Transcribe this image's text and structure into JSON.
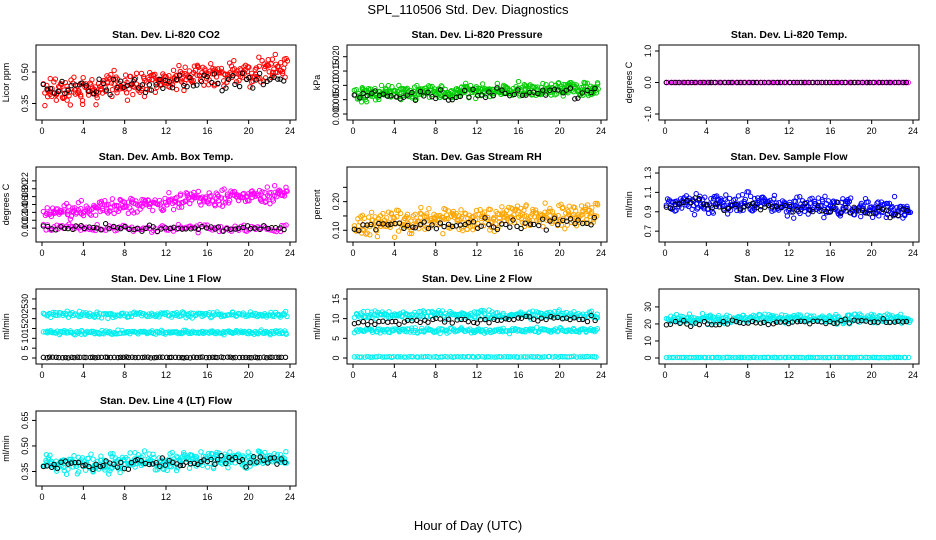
{
  "title": "SPL_110506  Std. Dev. Diagnostics",
  "xlabel": "Hour of Day (UTC)",
  "chart_data": [
    {
      "type": "scatter",
      "title": "Stan. Dev. Li-820 CO2",
      "ylabel": "Licor ppm",
      "color": "#ff0000",
      "xlim": [
        0,
        24
      ],
      "ylim": [
        0.3,
        0.6
      ],
      "xticks": [
        0,
        4,
        8,
        12,
        16,
        20,
        24
      ],
      "yticks": [
        0.35,
        0.5
      ],
      "yticklabels": [
        "0.35",
        "0.50"
      ],
      "series": [
        {
          "color": "#ff0000",
          "band": [
            0.4,
            0.52
          ],
          "spread": 0.06,
          "n": 320
        },
        {
          "color": "#000000",
          "band": [
            0.42,
            0.48
          ],
          "spread": 0.04,
          "n": 70
        }
      ]
    },
    {
      "type": "scatter",
      "title": "Stan. Dev. Li-820 Pressure",
      "ylabel": "kPa",
      "color": "#00cc00",
      "xlim": [
        0,
        24
      ],
      "ylim": [
        0,
        0.022
      ],
      "xticks": [
        0,
        4,
        8,
        12,
        16,
        20,
        24
      ],
      "yticks": [
        0,
        0.005,
        0.01,
        0.015,
        0.02
      ],
      "yticklabels": [
        "0.000",
        "0.005",
        "0.010",
        "0.015",
        "0.020"
      ],
      "series": [
        {
          "color": "#00cc00",
          "band": [
            0.007,
            0.009
          ],
          "spread": 0.0025,
          "n": 360
        },
        {
          "color": "#000000",
          "band": [
            0.006,
            0.008
          ],
          "spread": 0.002,
          "n": 60
        }
      ]
    },
    {
      "type": "scatter",
      "title": "Stan. Dev. Li-820 Temp.",
      "ylabel": "degrees C",
      "color": "#ff00ff",
      "xlim": [
        0,
        24
      ],
      "ylim": [
        -1,
        1
      ],
      "xticks": [
        0,
        4,
        8,
        12,
        16,
        20,
        24
      ],
      "yticks": [
        -1,
        0,
        1
      ],
      "yticklabels": [
        "-1.0",
        "0.0",
        "1.0"
      ],
      "series": [
        {
          "color": "#ff00ff",
          "band": [
            0,
            0
          ],
          "spread": 0,
          "n": 120
        },
        {
          "color": "#000000",
          "band": [
            0,
            0
          ],
          "spread": 0,
          "n": 60
        }
      ]
    },
    {
      "type": "scatter",
      "title": "Stan. Dev. Amb. Box Temp.",
      "ylabel": "degrees C",
      "color": "#ff00ff",
      "xlim": [
        0,
        24
      ],
      "ylim": [
        0.08,
        0.24
      ],
      "xticks": [
        0,
        4,
        8,
        12,
        16,
        20,
        24
      ],
      "yticks": [
        0.1,
        0.12,
        0.14,
        0.16,
        0.18,
        0.2,
        0.22
      ],
      "yticklabels": [
        "0.10",
        "0.12",
        "0.14",
        "0.16",
        "0.18",
        "0.20",
        "0.22"
      ],
      "series": [
        {
          "color": "#ff00ff",
          "band": [
            0.14,
            0.19
          ],
          "spread": 0.02,
          "n": 280
        },
        {
          "color": "#ff00ff",
          "band": [
            0.1,
            0.1
          ],
          "spread": 0.01,
          "n": 120
        },
        {
          "color": "#000000",
          "band": [
            0.1,
            0.1
          ],
          "spread": 0.008,
          "n": 60
        }
      ]
    },
    {
      "type": "scatter",
      "title": "Stan. Dev. Gas Stream RH",
      "ylabel": "percent",
      "color": "#ffa500",
      "xlim": [
        0,
        24
      ],
      "ylim": [
        0.08,
        0.3
      ],
      "xticks": [
        0,
        4,
        8,
        12,
        16,
        20,
        24
      ],
      "yticks": [
        0.1,
        0.15,
        0.2,
        0.25
      ],
      "yticklabels": [
        "0.10",
        "",
        "0.20",
        ""
      ],
      "series": [
        {
          "color": "#ffa500",
          "band": [
            0.12,
            0.16
          ],
          "spread": 0.04,
          "n": 340
        },
        {
          "color": "#000000",
          "band": [
            0.11,
            0.13
          ],
          "spread": 0.02,
          "n": 60
        }
      ]
    },
    {
      "type": "scatter",
      "title": "Stan. Dev. Sample Flow",
      "ylabel": "ml/min",
      "color": "#0000ff",
      "xlim": [
        0,
        24
      ],
      "ylim": [
        0.65,
        1.3
      ],
      "xticks": [
        0,
        4,
        8,
        12,
        16,
        20,
        24
      ],
      "yticks": [
        0.7,
        0.9,
        1.1,
        1.3
      ],
      "yticklabels": [
        "0.7",
        "0.9",
        "1.1",
        "1.3"
      ],
      "series": [
        {
          "color": "#0000ff",
          "band": [
            1.0,
            0.92
          ],
          "spread": 0.1,
          "n": 340
        },
        {
          "color": "#000000",
          "band": [
            0.98,
            0.9
          ],
          "spread": 0.06,
          "n": 60
        }
      ]
    },
    {
      "type": "scatter",
      "title": "Stan. Dev. Line 1 Flow",
      "ylabel": "ml/min",
      "color": "#00eeee",
      "xlim": [
        0,
        24
      ],
      "ylim": [
        0,
        32
      ],
      "xticks": [
        0,
        4,
        8,
        12,
        16,
        20,
        24
      ],
      "yticks": [
        0,
        5,
        10,
        15,
        20,
        25,
        30
      ],
      "yticklabels": [
        "0",
        "5",
        "10",
        "15",
        "20",
        "25",
        "30"
      ],
      "series": [
        {
          "color": "#00eeee",
          "band": [
            22,
            22
          ],
          "spread": 1.5,
          "n": 200
        },
        {
          "color": "#00eeee",
          "band": [
            13,
            13
          ],
          "spread": 1.0,
          "n": 200
        },
        {
          "color": "#000000",
          "band": [
            0.3,
            0.3
          ],
          "spread": 0.2,
          "n": 80
        }
      ]
    },
    {
      "type": "scatter",
      "title": "Stan. Dev. Line 2 Flow",
      "ylabel": "ml/min",
      "color": "#00eeee",
      "xlim": [
        0,
        24
      ],
      "ylim": [
        0,
        16
      ],
      "xticks": [
        0,
        4,
        8,
        12,
        16,
        20,
        24
      ],
      "yticks": [
        0,
        5,
        10,
        15
      ],
      "yticklabels": [
        "0",
        "5",
        "10",
        "15"
      ],
      "series": [
        {
          "color": "#00eeee",
          "band": [
            11,
            11
          ],
          "spread": 1.0,
          "n": 220
        },
        {
          "color": "#00eeee",
          "band": [
            7,
            7
          ],
          "spread": 0.6,
          "n": 200
        },
        {
          "color": "#00eeee",
          "band": [
            0.3,
            0.3
          ],
          "spread": 0.1,
          "n": 100
        },
        {
          "color": "#000000",
          "band": [
            9,
            10
          ],
          "spread": 0.8,
          "n": 60
        }
      ]
    },
    {
      "type": "scatter",
      "title": "Stan. Dev. Line 3 Flow",
      "ylabel": "ml/min",
      "color": "#00eeee",
      "xlim": [
        0,
        24
      ],
      "ylim": [
        0,
        37
      ],
      "xticks": [
        0,
        4,
        8,
        12,
        16,
        20,
        24
      ],
      "yticks": [
        0,
        10,
        20,
        30
      ],
      "yticklabels": [
        "0",
        "10",
        "20",
        "30"
      ],
      "series": [
        {
          "color": "#00eeee",
          "band": [
            23,
            23
          ],
          "spread": 2.5,
          "n": 300
        },
        {
          "color": "#00eeee",
          "band": [
            0.3,
            0.3
          ],
          "spread": 0.1,
          "n": 100
        },
        {
          "color": "#000000",
          "band": [
            20,
            22
          ],
          "spread": 1.5,
          "n": 60
        }
      ]
    },
    {
      "type": "scatter",
      "title": "Stan. Dev. Line 4 (LT) Flow",
      "ylabel": "ml/min",
      "color": "#00eeee",
      "xlim": [
        0,
        24
      ],
      "ylim": [
        0.3,
        0.67
      ],
      "xticks": [
        0,
        4,
        8,
        12,
        16,
        20,
        24
      ],
      "yticks": [
        0.35,
        0.5,
        0.65
      ],
      "yticklabels": [
        "0.35",
        "0.50",
        "0.65"
      ],
      "series": [
        {
          "color": "#00eeee",
          "band": [
            0.39,
            0.43
          ],
          "spread": 0.05,
          "n": 320
        },
        {
          "color": "#000000",
          "band": [
            0.39,
            0.41
          ],
          "spread": 0.03,
          "n": 70
        }
      ]
    }
  ]
}
